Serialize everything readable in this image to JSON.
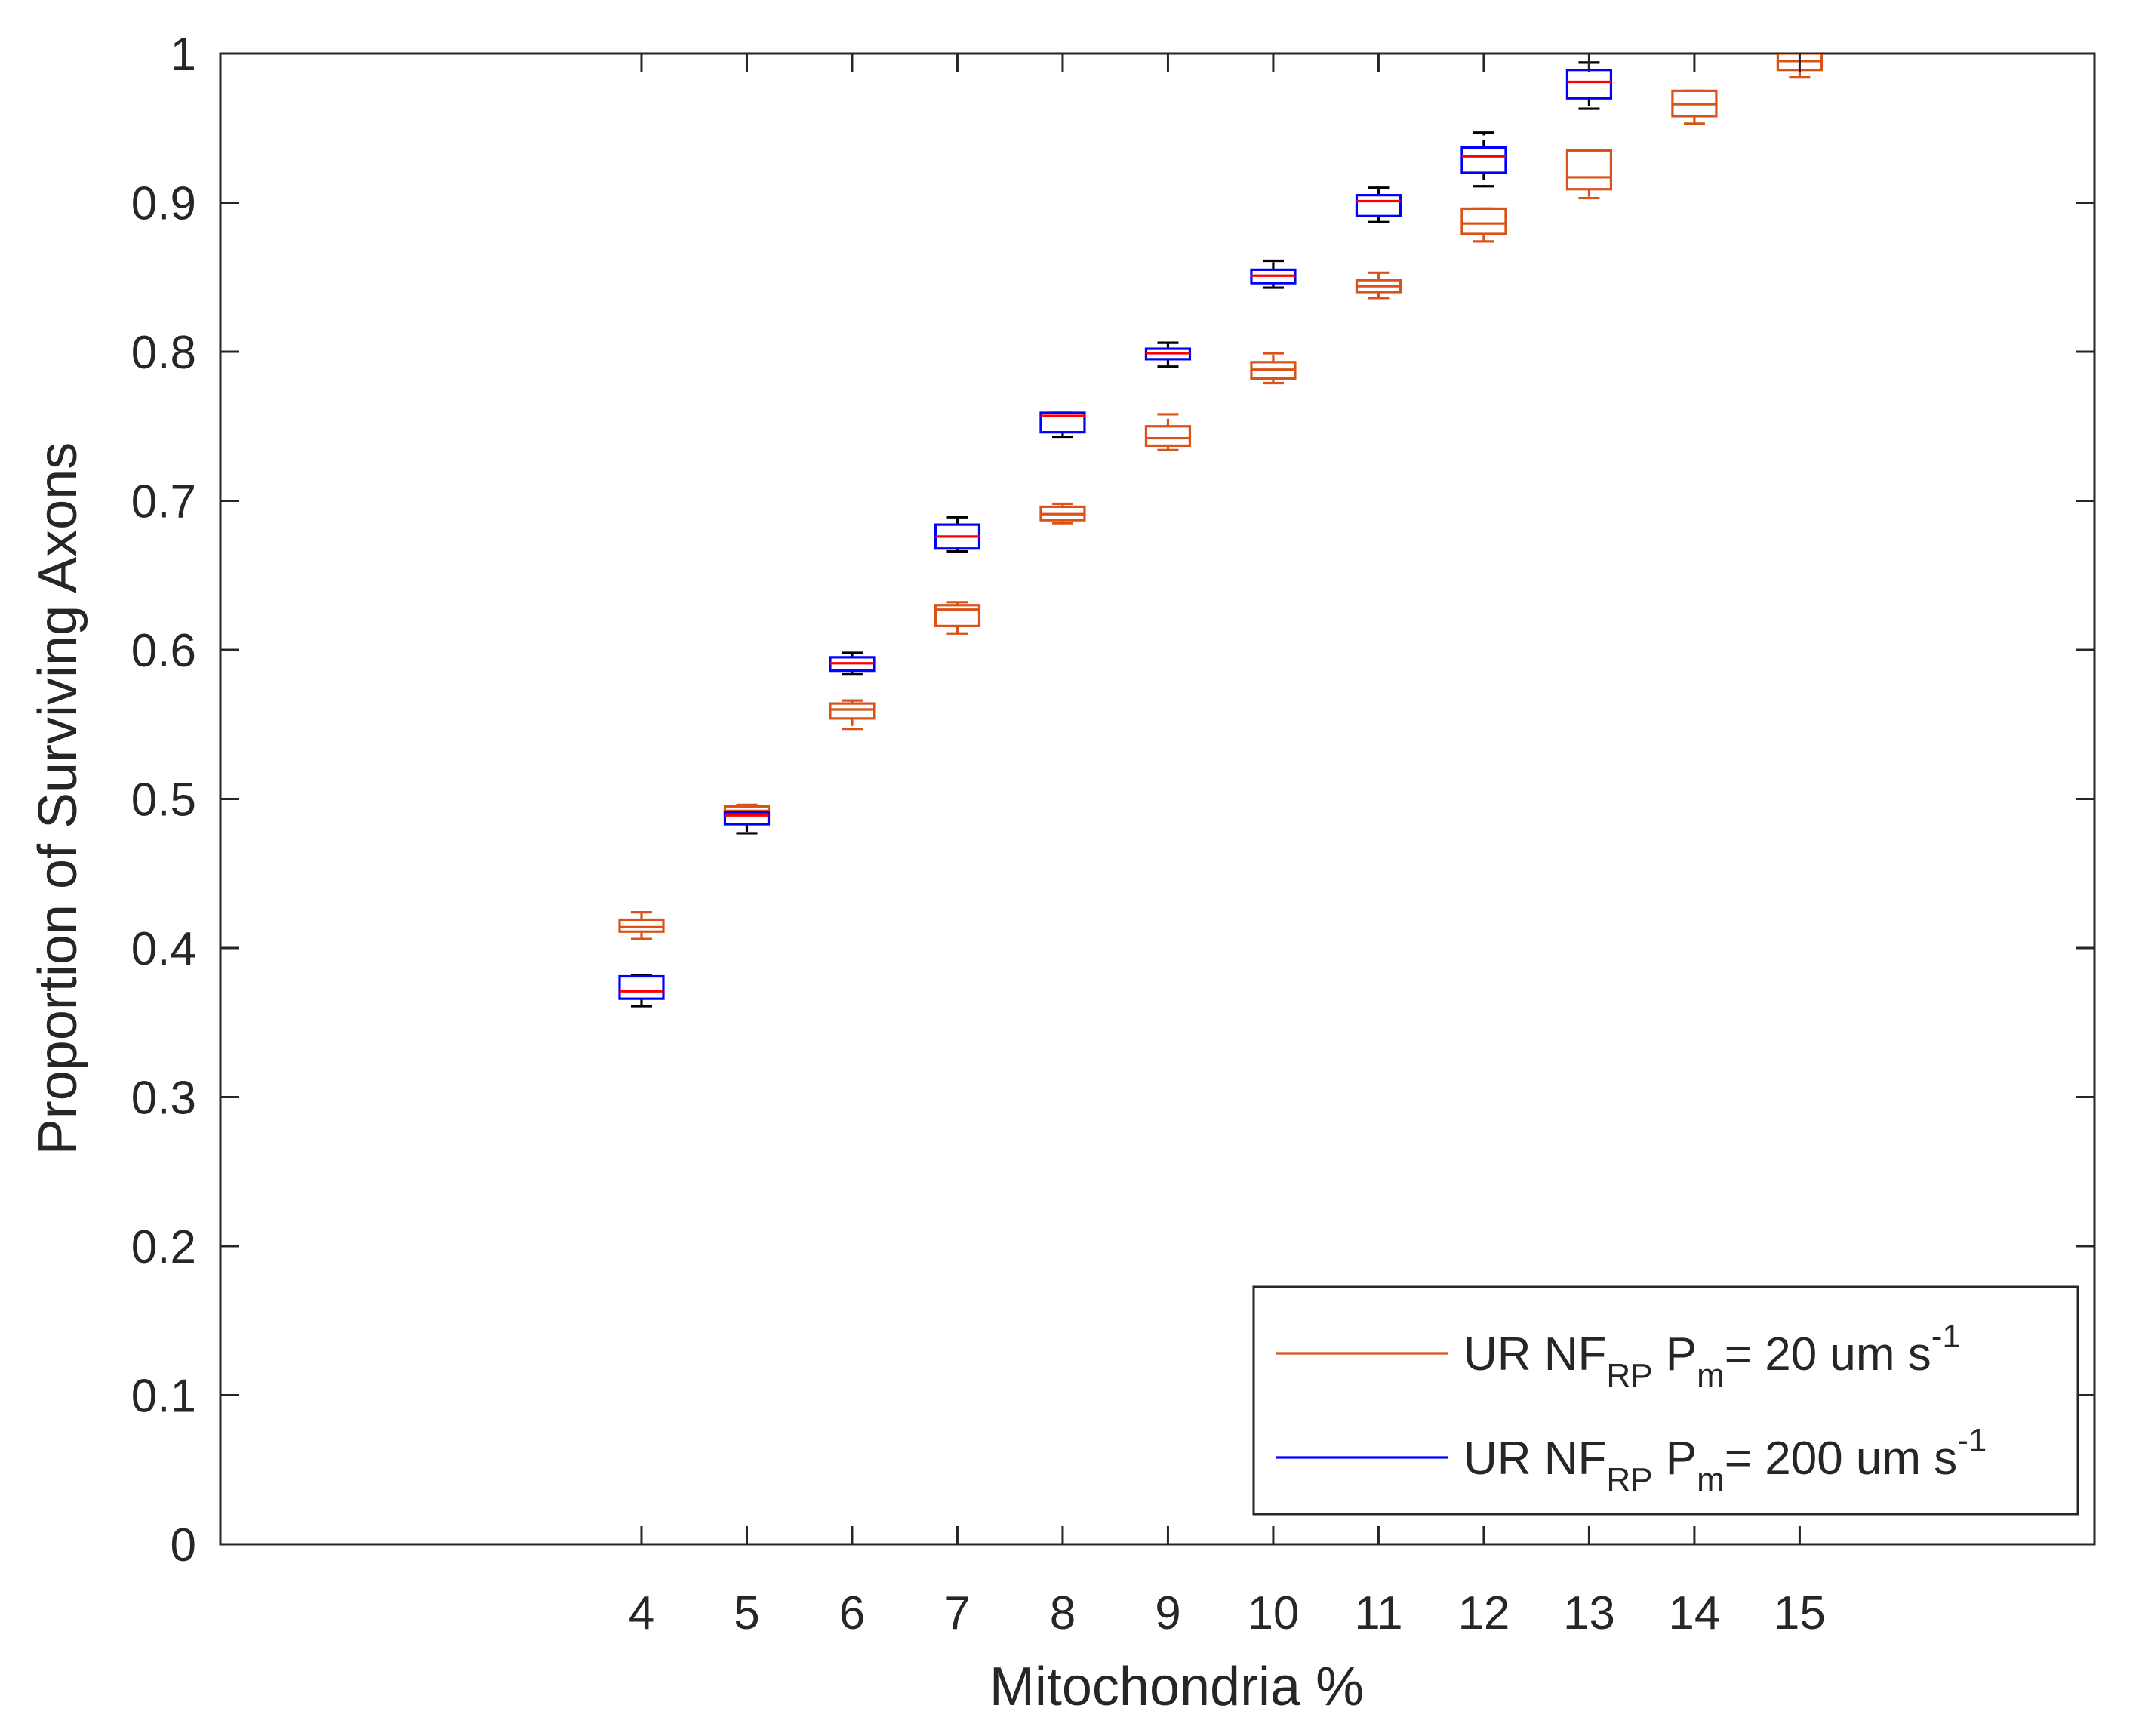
{
  "chart_data": {
    "type": "boxplot",
    "title": "",
    "xlabel": "Mitochondria %",
    "ylabel": "Proportion of Surviving Axons",
    "xlim": [
      0,
      17.8
    ],
    "ylim": [
      0,
      1
    ],
    "x_ticks": [
      4,
      5,
      6,
      7,
      8,
      9,
      10,
      11,
      12,
      13,
      14,
      15
    ],
    "y_ticks": [
      0,
      0.1,
      0.2,
      0.3,
      0.4,
      0.5,
      0.6,
      0.7,
      0.8,
      0.9,
      1
    ],
    "y_tick_labels": [
      "0",
      "0.1",
      "0.2",
      "0.3",
      "0.4",
      "0.5",
      "0.6",
      "0.7",
      "0.8",
      "0.9",
      "1"
    ],
    "median_color": "#ff0000",
    "whisker_color_blue_series": "#000000",
    "legend_position": "bottom-right",
    "series": [
      {
        "name": "UR NF_RP P_m = 20 um s^-1",
        "legend": {
          "prefix": "UR NF",
          "sub1": "RP",
          "mid": " P",
          "sub2": "m",
          "rest": "= 20 um s",
          "sup": "-1"
        },
        "color": "#d95319",
        "boxes": [
          {
            "x": 4,
            "whisker_low": 0.406,
            "q1": 0.411,
            "median": 0.414,
            "q3": 0.419,
            "whisker_high": 0.424
          },
          {
            "x": 5,
            "whisker_low": 0.487,
            "q1": 0.489,
            "median": 0.492,
            "q3": 0.495,
            "whisker_high": 0.496
          },
          {
            "x": 6,
            "whisker_low": 0.547,
            "q1": 0.554,
            "median": 0.56,
            "q3": 0.564,
            "whisker_high": 0.566
          },
          {
            "x": 7,
            "whisker_low": 0.611,
            "q1": 0.616,
            "median": 0.627,
            "q3": 0.63,
            "whisker_high": 0.632
          },
          {
            "x": 8,
            "whisker_low": 0.685,
            "q1": 0.687,
            "median": 0.691,
            "q3": 0.696,
            "whisker_high": 0.698
          },
          {
            "x": 9,
            "whisker_low": 0.734,
            "q1": 0.737,
            "median": 0.742,
            "q3": 0.75,
            "whisker_high": 0.758
          },
          {
            "x": 10,
            "whisker_low": 0.779,
            "q1": 0.782,
            "median": 0.788,
            "q3": 0.793,
            "whisker_high": 0.799
          },
          {
            "x": 11,
            "whisker_low": 0.836,
            "q1": 0.84,
            "median": 0.844,
            "q3": 0.848,
            "whisker_high": 0.853
          },
          {
            "x": 12,
            "whisker_low": 0.874,
            "q1": 0.879,
            "median": 0.886,
            "q3": 0.896,
            "whisker_high": 0.896
          },
          {
            "x": 13,
            "whisker_low": 0.903,
            "q1": 0.909,
            "median": 0.917,
            "q3": 0.935,
            "whisker_high": 0.935
          },
          {
            "x": 14,
            "whisker_low": 0.953,
            "q1": 0.958,
            "median": 0.966,
            "q3": 0.975,
            "whisker_high": 0.975
          },
          {
            "x": 15,
            "whisker_low": 0.984,
            "q1": 0.989,
            "median": 0.995,
            "q3": 1.0,
            "whisker_high": 1.0
          }
        ]
      },
      {
        "name": "UR NF_RP P_m = 200 um s^-1",
        "legend": {
          "prefix": "UR NF",
          "sub1": "RP",
          "mid": " P",
          "sub2": "m",
          "rest": "= 200 um s",
          "sup": "-1"
        },
        "color": "#0000ff",
        "boxes": [
          {
            "x": 4,
            "whisker_low": 0.361,
            "q1": 0.366,
            "median": 0.371,
            "q3": 0.381,
            "whisker_high": 0.382
          },
          {
            "x": 5,
            "whisker_low": 0.477,
            "q1": 0.483,
            "median": 0.489,
            "q3": 0.491,
            "whisker_high": 0.491
          },
          {
            "x": 6,
            "whisker_low": 0.584,
            "q1": 0.586,
            "median": 0.591,
            "q3": 0.595,
            "whisker_high": 0.598
          },
          {
            "x": 7,
            "whisker_low": 0.666,
            "q1": 0.668,
            "median": 0.676,
            "q3": 0.684,
            "whisker_high": 0.689
          },
          {
            "x": 8,
            "whisker_low": 0.743,
            "q1": 0.746,
            "median": 0.757,
            "q3": 0.759,
            "whisker_high": 0.759
          },
          {
            "x": 9,
            "whisker_low": 0.79,
            "q1": 0.795,
            "median": 0.799,
            "q3": 0.802,
            "whisker_high": 0.806
          },
          {
            "x": 10,
            "whisker_low": 0.843,
            "q1": 0.846,
            "median": 0.851,
            "q3": 0.855,
            "whisker_high": 0.861
          },
          {
            "x": 11,
            "whisker_low": 0.887,
            "q1": 0.891,
            "median": 0.901,
            "q3": 0.905,
            "whisker_high": 0.91
          },
          {
            "x": 12,
            "whisker_low": 0.911,
            "q1": 0.92,
            "median": 0.931,
            "q3": 0.937,
            "whisker_high": 0.947
          },
          {
            "x": 13,
            "whisker_low": 0.963,
            "q1": 0.97,
            "median": 0.981,
            "q3": 0.989,
            "whisker_high": 0.994
          }
        ]
      }
    ]
  }
}
